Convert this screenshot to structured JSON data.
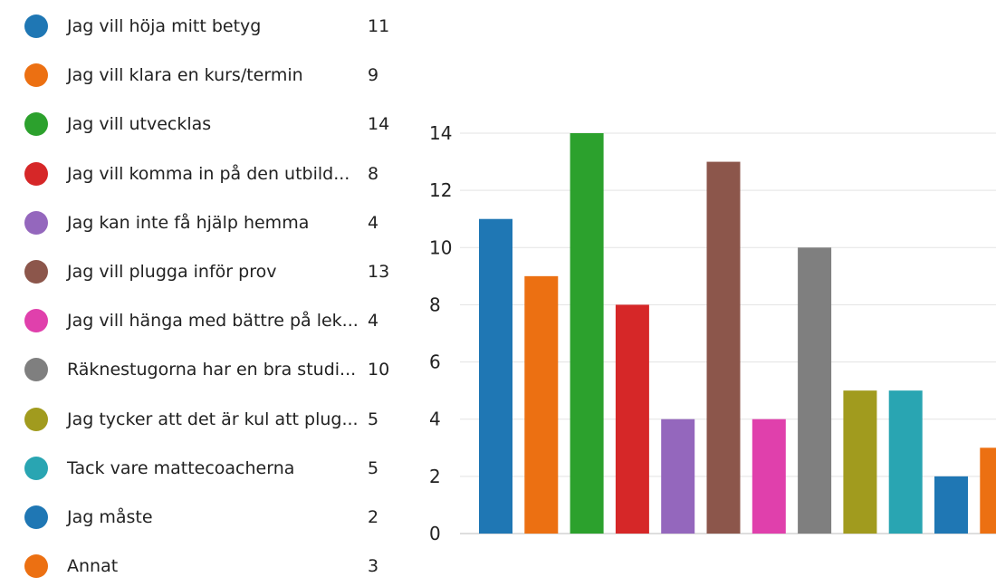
{
  "colors": [
    "#1f77b4",
    "#ec7012",
    "#2ca12d",
    "#d62728",
    "#9467bd",
    "#8c564b",
    "#e040ac",
    "#7f7f7f",
    "#a19b1e",
    "#29a5b2",
    "#1f77b4",
    "#ec7012"
  ],
  "chart_data": {
    "type": "bar",
    "categories": [
      "Jag vill höja mitt betyg",
      "Jag vill klara en kurs/termin",
      "Jag vill utvecklas",
      "Jag vill komma in på den utbild...",
      "Jag kan inte få hjälp hemma",
      "Jag vill plugga inför prov",
      "Jag vill hänga med bättre på lek...",
      "Räknestugorna har en bra studi...",
      "Jag tycker att det är kul att plug...",
      "Tack vare mattecoacherna",
      "Jag måste",
      "Annat"
    ],
    "values": [
      11,
      9,
      14,
      8,
      4,
      13,
      4,
      10,
      5,
      5,
      2,
      3
    ],
    "ylim": [
      0,
      14
    ],
    "yticks": [
      "0",
      "2",
      "4",
      "6",
      "8",
      "10",
      "12",
      "14"
    ],
    "grid": true,
    "legend_placement": "left"
  }
}
